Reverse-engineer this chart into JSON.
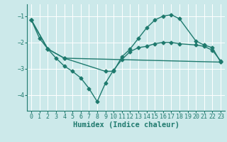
{
  "bg_color": "#cce9ea",
  "line_color": "#1f7a6e",
  "grid_color": "#ffffff",
  "xlabel": "Humidex (Indice chaleur)",
  "xlabel_fontsize": 7.5,
  "tick_fontsize": 6,
  "ylim": [
    -4.6,
    -0.55
  ],
  "xlim": [
    -0.5,
    23.5
  ],
  "yticks": [
    -4,
    -3,
    -2,
    -1
  ],
  "xticks": [
    0,
    1,
    2,
    3,
    4,
    5,
    6,
    7,
    8,
    9,
    10,
    11,
    12,
    13,
    14,
    15,
    16,
    17,
    18,
    19,
    20,
    21,
    22,
    23
  ],
  "line1_x": [
    0,
    1,
    2,
    3,
    4,
    5,
    6,
    7,
    8,
    9,
    10,
    11,
    12,
    13,
    14,
    15,
    16,
    17,
    18,
    20,
    21,
    22,
    23
  ],
  "line1_y": [
    -1.15,
    -1.85,
    -2.25,
    -2.6,
    -2.9,
    -3.1,
    -3.35,
    -3.75,
    -4.25,
    -3.55,
    -3.05,
    -2.65,
    -2.35,
    -2.2,
    -2.15,
    -2.05,
    -2.0,
    -2.0,
    -2.05,
    -2.1,
    -2.15,
    -2.3,
    -2.7
  ],
  "line2_x": [
    0,
    2,
    4,
    9,
    10,
    11,
    12,
    13,
    14,
    15,
    16,
    17,
    18,
    20,
    21,
    22,
    23
  ],
  "line2_y": [
    -1.15,
    -2.25,
    -2.6,
    -3.1,
    -3.1,
    -2.55,
    -2.25,
    -1.85,
    -1.45,
    -1.15,
    -1.0,
    -0.95,
    -1.1,
    -1.95,
    -2.1,
    -2.2,
    -2.75
  ],
  "line3_x": [
    0,
    2,
    4,
    23
  ],
  "line3_y": [
    -1.15,
    -2.25,
    -2.6,
    -2.75
  ],
  "marker": "D",
  "markersize": 2.5,
  "linewidth": 1.0
}
